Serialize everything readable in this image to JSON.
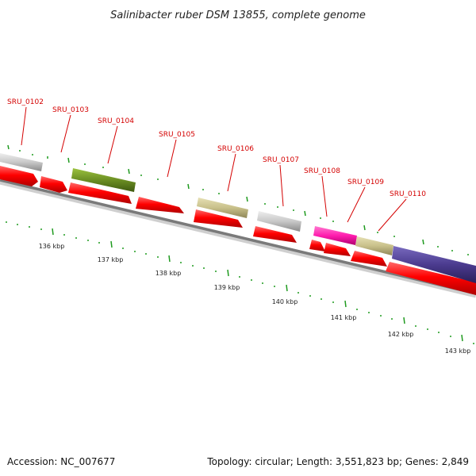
{
  "title": "Salinibacter ruber DSM 13855, complete genome",
  "footer": {
    "accession": "Accession: NC_007677",
    "summary": "Topology: circular; Length: 3,551,823 bp; Genes: 2,849"
  },
  "colors": {
    "cds_red": "#ff0000",
    "grey": "#c8c8c8",
    "olive_green": "#6b8e23",
    "khaki": "#c8c08a",
    "magenta": "#ff1cae",
    "purple": "#4b3b8f",
    "tick_green": "#1e9a1e",
    "label_red": "#d40000"
  },
  "gene_labels": [
    "SRU_0102",
    "SRU_0103",
    "SRU_0104",
    "SRU_0105",
    "SRU_0106",
    "SRU_0107",
    "SRU_0108",
    "SRU_0109",
    "SRU_0110"
  ],
  "scale_labels": [
    "136 kbp",
    "137 kbp",
    "138 kbp",
    "139 kbp",
    "140 kbp",
    "141 kbp",
    "142 kbp",
    "143 kbp"
  ]
}
